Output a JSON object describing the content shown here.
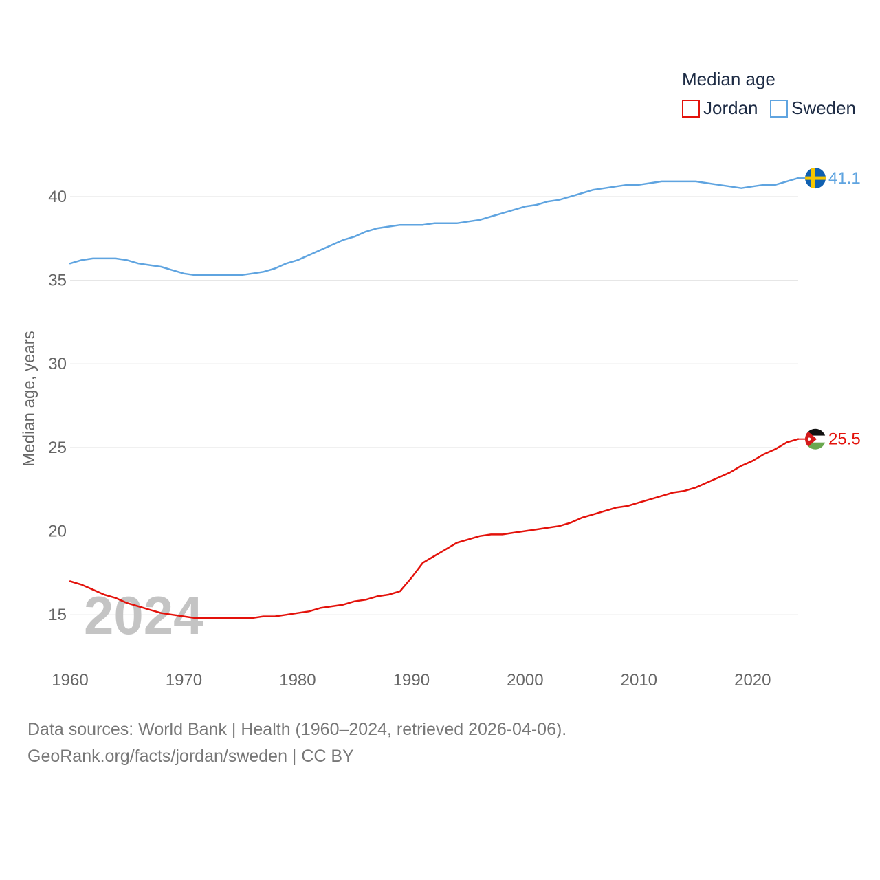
{
  "chart_data": {
    "type": "line",
    "ylabel": "Median age, years",
    "ylim": [
      12.5,
      42.5
    ],
    "yticks": [
      15,
      20,
      25,
      30,
      35,
      40
    ],
    "xlim": [
      1960,
      2024
    ],
    "xticks": [
      1960,
      1970,
      1980,
      1990,
      2000,
      2010,
      2020
    ],
    "grid": true,
    "legend": {
      "title": "Median age",
      "position": "top-right"
    },
    "current_year_label": "2024",
    "x": [
      1960,
      1961,
      1962,
      1963,
      1964,
      1965,
      1966,
      1967,
      1968,
      1969,
      1970,
      1971,
      1972,
      1973,
      1974,
      1975,
      1976,
      1977,
      1978,
      1979,
      1980,
      1981,
      1982,
      1983,
      1984,
      1985,
      1986,
      1987,
      1988,
      1989,
      1990,
      1991,
      1992,
      1993,
      1994,
      1995,
      1996,
      1997,
      1998,
      1999,
      2000,
      2001,
      2002,
      2003,
      2004,
      2005,
      2006,
      2007,
      2008,
      2009,
      2010,
      2011,
      2012,
      2013,
      2014,
      2015,
      2016,
      2017,
      2018,
      2019,
      2020,
      2021,
      2022,
      2023,
      2024
    ],
    "series": [
      {
        "name": "Jordan",
        "color": "#e3120b",
        "end_label": "25.5",
        "values": [
          17.0,
          16.8,
          16.5,
          16.2,
          16.0,
          15.7,
          15.5,
          15.3,
          15.1,
          15.0,
          14.9,
          14.8,
          14.8,
          14.8,
          14.8,
          14.8,
          14.8,
          14.9,
          14.9,
          15.0,
          15.1,
          15.2,
          15.4,
          15.5,
          15.6,
          15.8,
          15.9,
          16.1,
          16.2,
          16.4,
          17.2,
          18.1,
          18.5,
          18.9,
          19.3,
          19.5,
          19.7,
          19.8,
          19.8,
          19.9,
          20.0,
          20.1,
          20.2,
          20.3,
          20.5,
          20.8,
          21.0,
          21.2,
          21.4,
          21.5,
          21.7,
          21.9,
          22.1,
          22.3,
          22.4,
          22.6,
          22.9,
          23.2,
          23.5,
          23.9,
          24.2,
          24.6,
          24.9,
          25.3,
          25.5
        ]
      },
      {
        "name": "Sweden",
        "color": "#5fa4e0",
        "end_label": "41.1",
        "values": [
          36.0,
          36.2,
          36.3,
          36.3,
          36.3,
          36.2,
          36.0,
          35.9,
          35.8,
          35.6,
          35.4,
          35.3,
          35.3,
          35.3,
          35.3,
          35.3,
          35.4,
          35.5,
          35.7,
          36.0,
          36.2,
          36.5,
          36.8,
          37.1,
          37.4,
          37.6,
          37.9,
          38.1,
          38.2,
          38.3,
          38.3,
          38.3,
          38.4,
          38.4,
          38.4,
          38.5,
          38.6,
          38.8,
          39.0,
          39.2,
          39.4,
          39.5,
          39.7,
          39.8,
          40.0,
          40.2,
          40.4,
          40.5,
          40.6,
          40.7,
          40.7,
          40.8,
          40.9,
          40.9,
          40.9,
          40.9,
          40.8,
          40.7,
          40.6,
          40.5,
          40.6,
          40.7,
          40.7,
          40.9,
          41.1
        ]
      }
    ]
  },
  "source": {
    "line1": "Data sources: World Bank | Health (1960–2024, retrieved 2026-04-06).",
    "line2": "GeoRank.org/facts/jordan/sweden | CC BY"
  }
}
